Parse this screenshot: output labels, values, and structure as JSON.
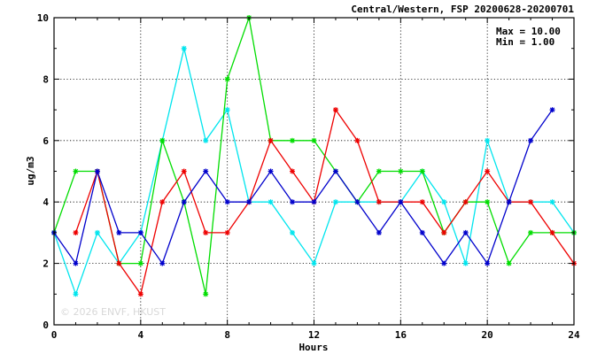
{
  "chart_data": {
    "type": "line",
    "title": "Central/Western, FSP 20200628-20200701",
    "xlabel": "Hours",
    "ylabel": "ug/m3",
    "xlim": [
      0,
      24
    ],
    "ylim": [
      0,
      10
    ],
    "xticks": [
      0,
      4,
      8,
      12,
      16,
      20,
      24
    ],
    "yticks": [
      0,
      2,
      4,
      6,
      8,
      10
    ],
    "grid": true,
    "stats": {
      "max": "Max = 10.00",
      "min": "Min =  1.00"
    },
    "watermark": "© 2026 ENVF, HKUST",
    "series": [
      {
        "color": "#00e5ee",
        "x": [
          0,
          1,
          2,
          3,
          4,
          5,
          6,
          7,
          8,
          9,
          10,
          11,
          12,
          13,
          14,
          15,
          16,
          17,
          18,
          19,
          20,
          21,
          22,
          23,
          24
        ],
        "y": [
          3,
          1,
          3,
          2,
          3,
          6,
          9,
          6,
          7,
          4,
          4,
          3,
          2,
          4,
          4,
          4,
          4,
          5,
          4,
          2,
          6,
          4,
          4,
          4,
          3
        ]
      },
      {
        "color": "#00dd00",
        "x": [
          0,
          1,
          2,
          3,
          4,
          5,
          6,
          7,
          8,
          9,
          10,
          11,
          12,
          13,
          14,
          15,
          16,
          17,
          18,
          19,
          20,
          21,
          22,
          23,
          24
        ],
        "y": [
          3,
          5,
          5,
          2,
          2,
          6,
          4,
          1,
          8,
          10,
          6,
          6,
          6,
          5,
          4,
          5,
          5,
          5,
          3,
          4,
          4,
          2,
          3,
          3,
          3
        ]
      },
      {
        "color": "#ee0000",
        "x": [
          1,
          2,
          3,
          4,
          5,
          6,
          7,
          8,
          9,
          10,
          11,
          12,
          13,
          14,
          15,
          16,
          17,
          18,
          19,
          20,
          21,
          22,
          23,
          24
        ],
        "y": [
          3,
          5,
          2,
          1,
          4,
          5,
          3,
          3,
          4,
          6,
          5,
          4,
          7,
          6,
          4,
          4,
          4,
          3,
          4,
          5,
          4,
          4,
          3,
          2
        ]
      },
      {
        "color": "#0000cc",
        "x": [
          0,
          1,
          2,
          3,
          4,
          5,
          6,
          7,
          8,
          9,
          10,
          11,
          12,
          13,
          14,
          15,
          16,
          17,
          18,
          19,
          20,
          21,
          22,
          23
        ],
        "y": [
          3,
          2,
          5,
          3,
          3,
          2,
          4,
          5,
          4,
          4,
          5,
          4,
          4,
          5,
          4,
          3,
          4,
          3,
          2,
          3,
          2,
          4,
          6,
          7
        ]
      }
    ]
  }
}
